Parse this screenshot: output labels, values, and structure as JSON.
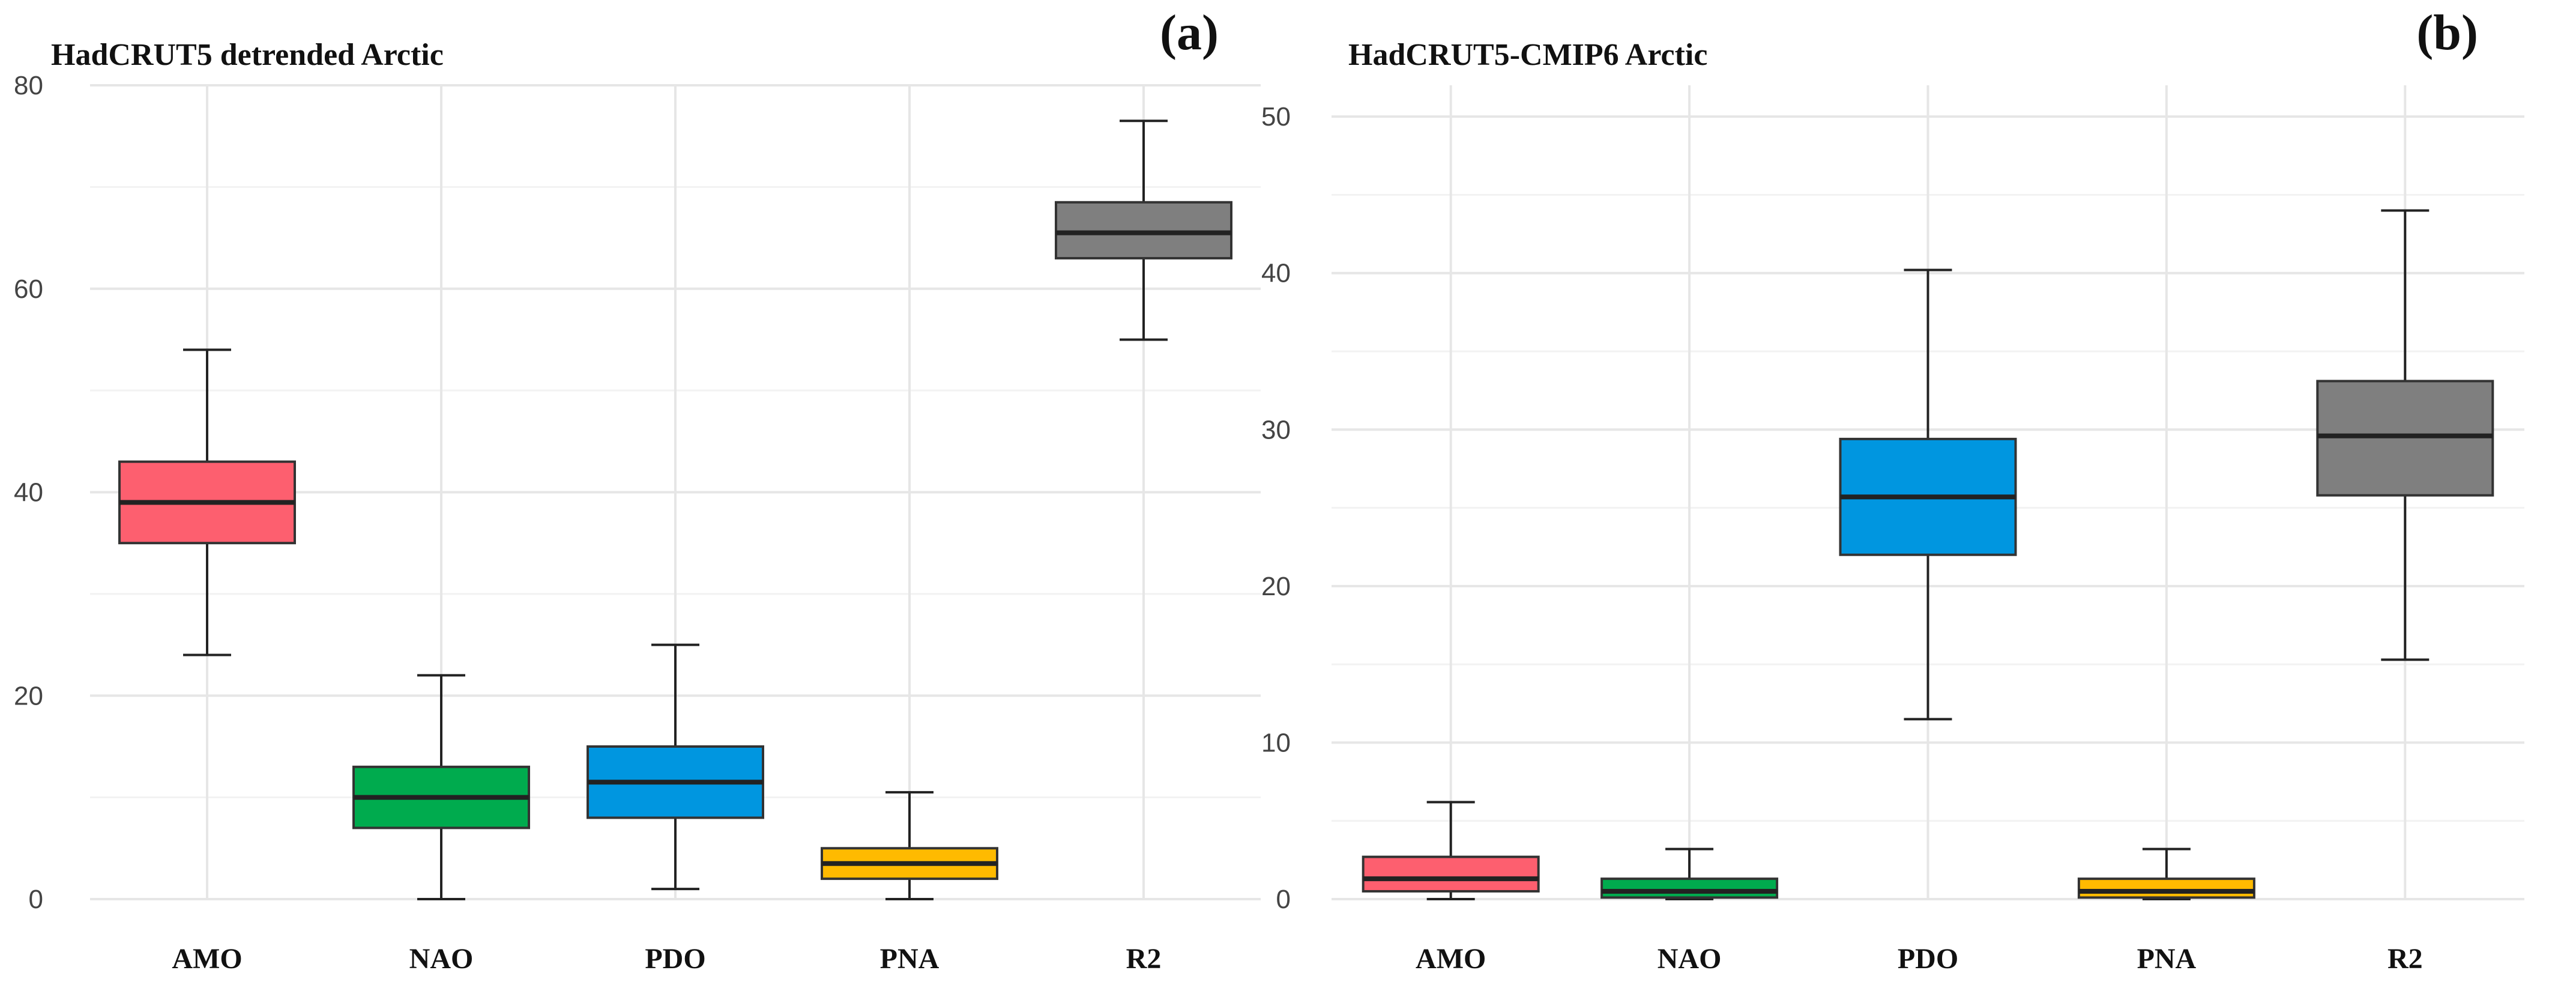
{
  "chart_data": [
    {
      "type": "boxplot",
      "panel_label": "(a)",
      "title": "HadCRUT5 detrended Arctic",
      "xlabel": "",
      "ylabel": "",
      "ylim": [
        0,
        80
      ],
      "yticks": [
        0,
        20,
        40,
        60,
        80
      ],
      "categories": [
        "AMO",
        "NAO",
        "PDO",
        "PNA",
        "R2"
      ],
      "colors": [
        "#fd5f6f",
        "#00ab4e",
        "#0096e0",
        "#ffba00",
        "#7f7f7f"
      ],
      "boxes": [
        {
          "category": "AMO",
          "min": 24.0,
          "q1": 35.0,
          "median": 39.0,
          "q3": 43.0,
          "max": 54.0
        },
        {
          "category": "NAO",
          "min": 0.0,
          "q1": 7.0,
          "median": 10.0,
          "q3": 13.0,
          "max": 22.0
        },
        {
          "category": "PDO",
          "min": 1.0,
          "q1": 8.0,
          "median": 11.5,
          "q3": 15.0,
          "max": 25.0
        },
        {
          "category": "PNA",
          "min": 0.0,
          "q1": 2.0,
          "median": 3.5,
          "q3": 5.0,
          "max": 10.5
        },
        {
          "category": "R2",
          "min": 55.0,
          "q1": 63.0,
          "median": 65.5,
          "q3": 68.5,
          "max": 76.5
        }
      ]
    },
    {
      "type": "boxplot",
      "panel_label": "(b)",
      "title": "HadCRUT5-CMIP6 Arctic",
      "xlabel": "",
      "ylabel": "",
      "ylim": [
        0,
        52
      ],
      "yticks": [
        0,
        10,
        20,
        30,
        40,
        50
      ],
      "categories": [
        "AMO",
        "NAO",
        "PDO",
        "PNA",
        "R2"
      ],
      "colors": [
        "#fd5f6f",
        "#00ab4e",
        "#0096e0",
        "#ffba00",
        "#7f7f7f"
      ],
      "boxes": [
        {
          "category": "AMO",
          "min": 0.0,
          "q1": 0.5,
          "median": 1.3,
          "q3": 2.7,
          "max": 6.2
        },
        {
          "category": "NAO",
          "min": 0.0,
          "q1": 0.1,
          "median": 0.5,
          "q3": 1.3,
          "max": 3.2
        },
        {
          "category": "PDO",
          "min": 11.5,
          "q1": 22.0,
          "median": 25.7,
          "q3": 29.4,
          "max": 40.2
        },
        {
          "category": "PNA",
          "min": 0.0,
          "q1": 0.1,
          "median": 0.5,
          "q3": 1.3,
          "max": 3.2
        },
        {
          "category": "R2",
          "min": 15.3,
          "q1": 25.8,
          "median": 29.6,
          "q3": 33.1,
          "max": 44.0
        }
      ]
    }
  ]
}
